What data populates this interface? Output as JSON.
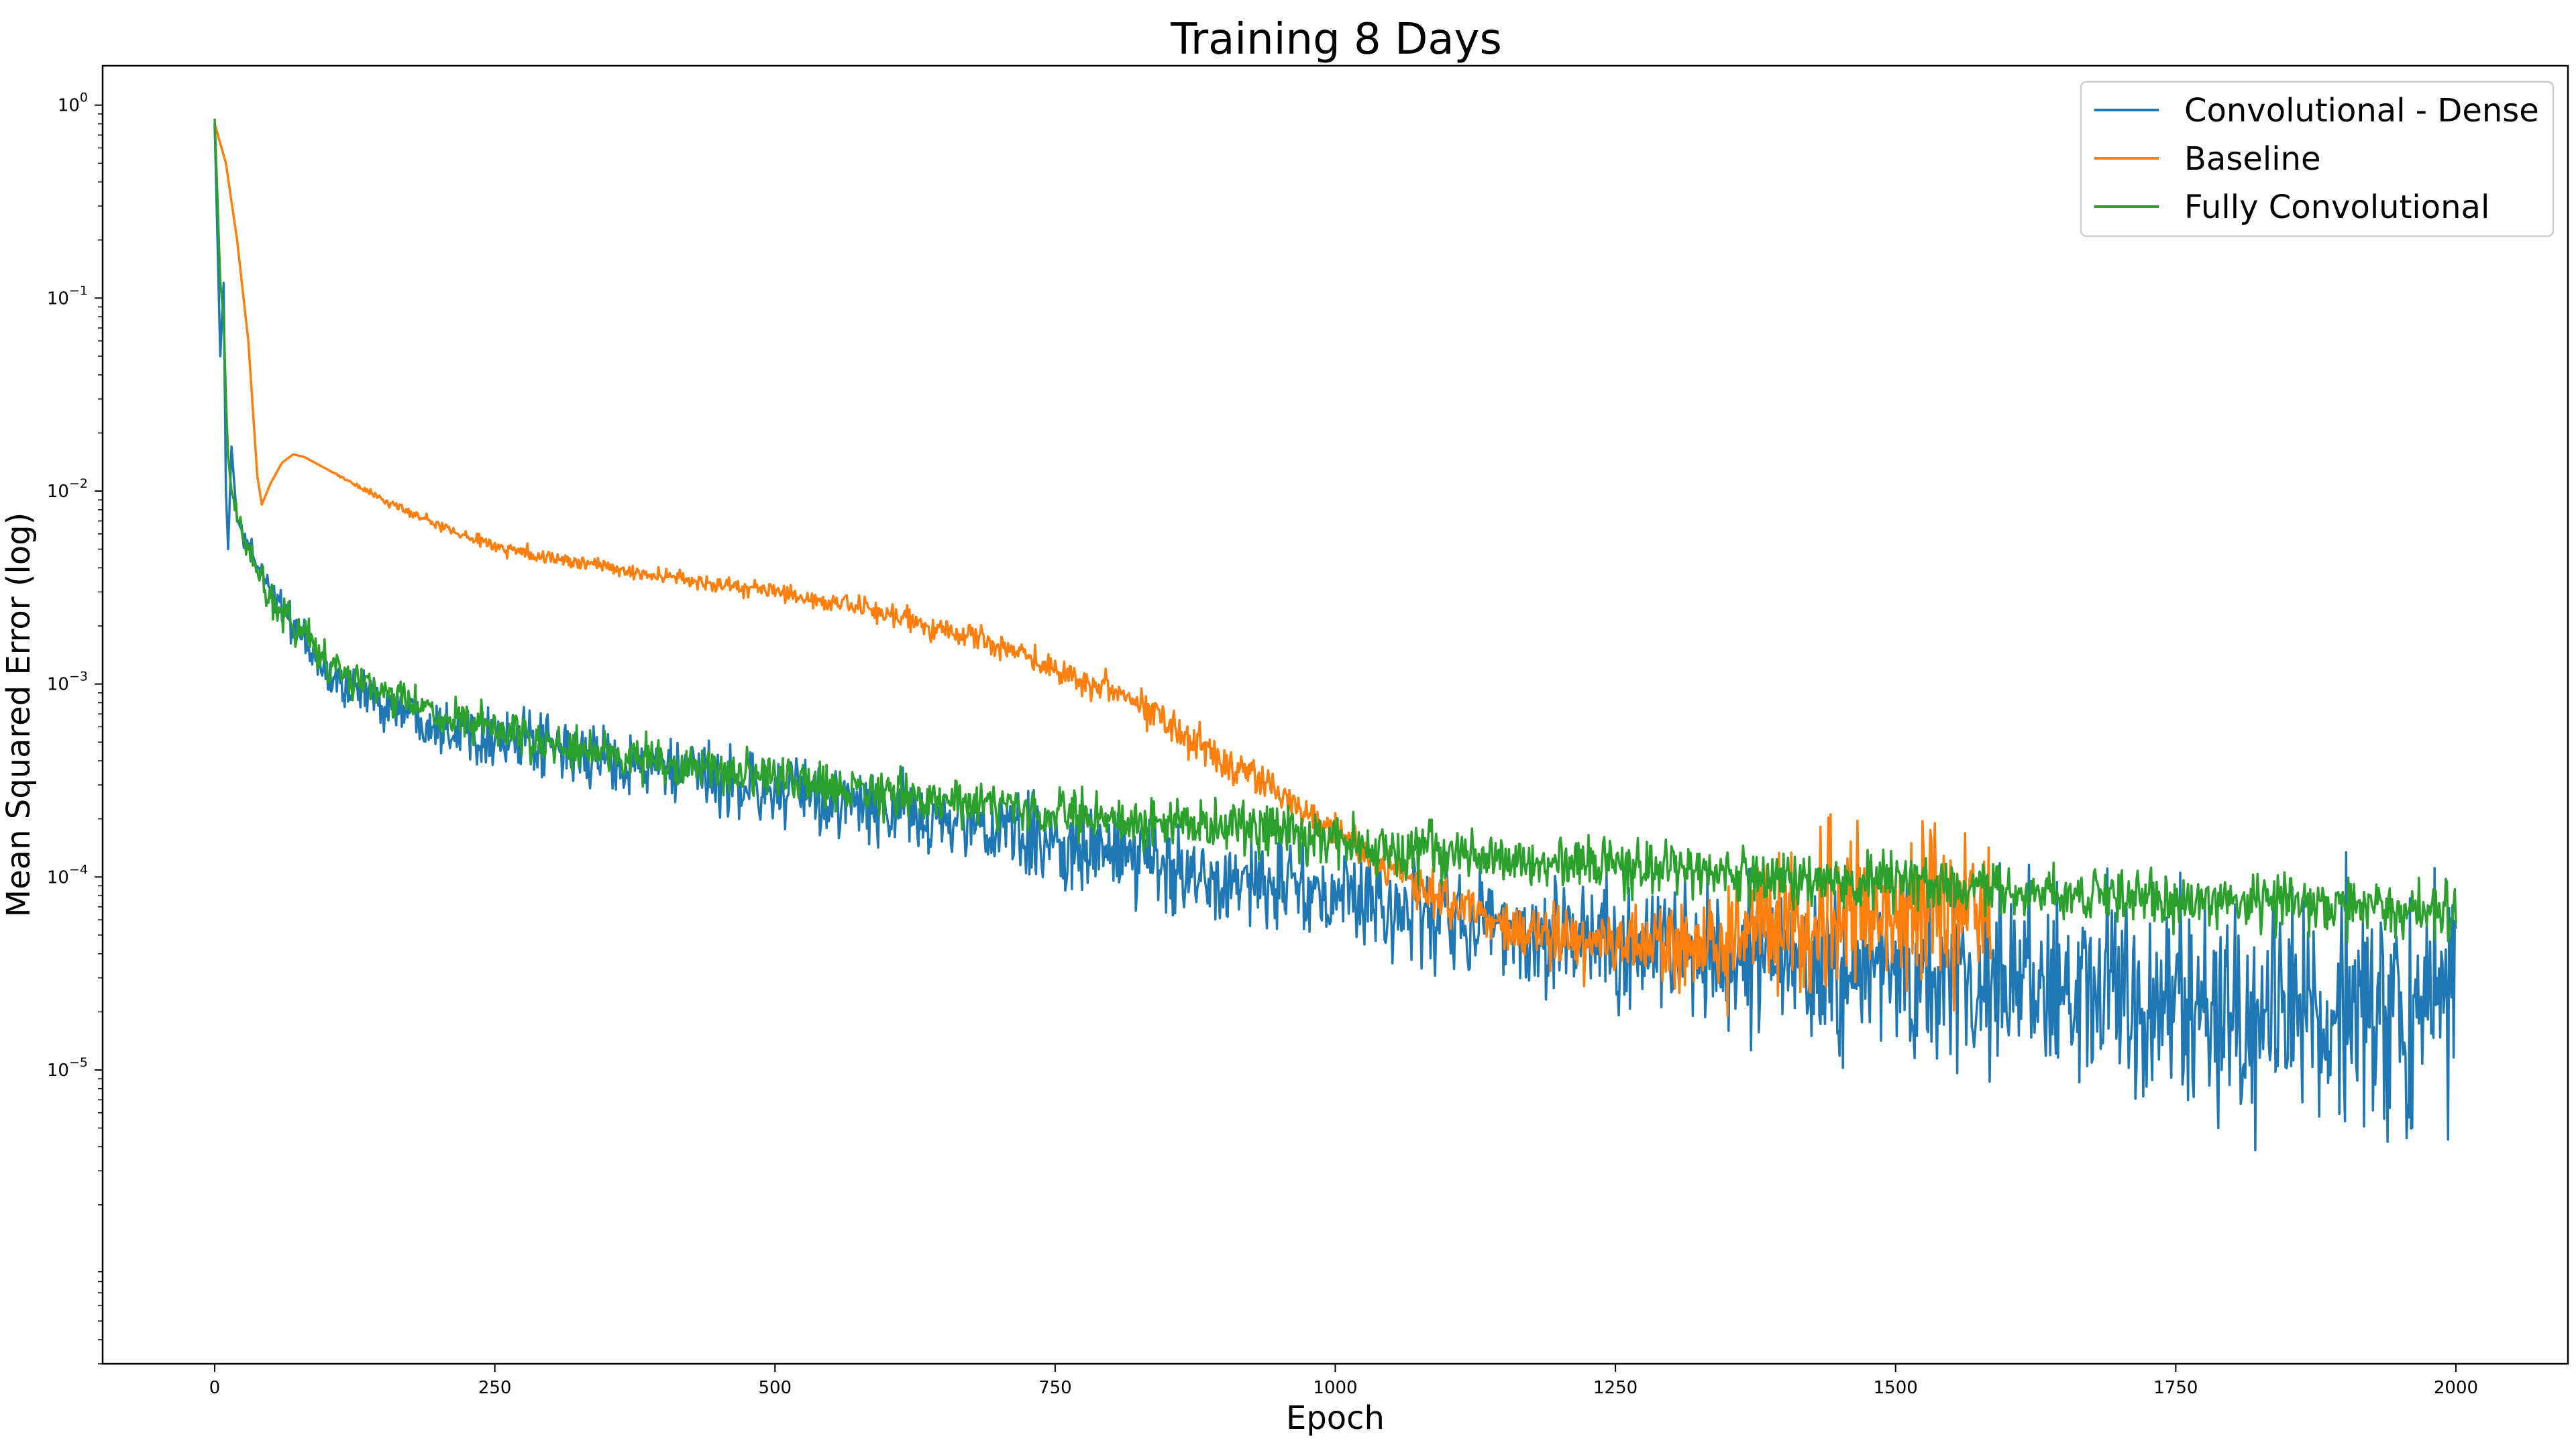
{
  "chart_data": {
    "type": "line",
    "title": "Training 8 Days",
    "xlabel": "Epoch",
    "ylabel": "Mean Squared Error (log)",
    "yscale": "log",
    "xlim": [
      -100,
      2100
    ],
    "ylim": [
      3e-07,
      1.6
    ],
    "xticks": [
      0,
      250,
      500,
      750,
      1000,
      1250,
      1500,
      1750,
      2000
    ],
    "xtick_labels": [
      "0",
      "250",
      "500",
      "750",
      "1000",
      "1250",
      "1500",
      "1750",
      "2000"
    ],
    "yticks": [
      1,
      0.1,
      0.01,
      0.001,
      0.0001,
      1e-05
    ],
    "ytick_labels": [
      {
        "base": "10",
        "exp": "0"
      },
      {
        "base": "10",
        "exp": "−1"
      },
      {
        "base": "10",
        "exp": "−2"
      },
      {
        "base": "10",
        "exp": "−3"
      },
      {
        "base": "10",
        "exp": "−4"
      },
      {
        "base": "10",
        "exp": "−5"
      }
    ],
    "grid": false,
    "legend_position": "top-right",
    "series": [
      {
        "name": "Convolutional - Dense",
        "color": "#1f77b4",
        "x": [
          0,
          5,
          8,
          10,
          12,
          15,
          20,
          30,
          40,
          60,
          80,
          100,
          150,
          200,
          300,
          400,
          500,
          600,
          700,
          800,
          900,
          1000,
          1100,
          1200,
          1300,
          1400,
          1500,
          1600,
          1700,
          1800,
          1900,
          2000
        ],
        "y": [
          0.8,
          0.05,
          0.12,
          0.01,
          0.005,
          0.017,
          0.007,
          0.005,
          0.004,
          0.0025,
          0.0016,
          0.0011,
          0.0008,
          0.00063,
          0.00046,
          0.00036,
          0.00028,
          0.00022,
          0.00017,
          0.00013,
          0.0001,
          7.8e-05,
          6.2e-05,
          5e-05,
          4.2e-05,
          3.6e-05,
          3.1e-05,
          2.7e-05,
          2.4e-05,
          2.1e-05,
          1.9e-05,
          1.7e-05
        ],
        "noise_amplitude": [
          0,
          0,
          0,
          0,
          0,
          0,
          0,
          0.05,
          0.05,
          0.05,
          0.05,
          0.06,
          0.06,
          0.07,
          0.08,
          0.08,
          0.09,
          0.1,
          0.1,
          0.11,
          0.12,
          0.12,
          0.14,
          0.15,
          0.17,
          0.19,
          0.22,
          0.25,
          0.28,
          0.3,
          0.32,
          0.32
        ]
      },
      {
        "name": "Baseline",
        "color": "#ff7f0e",
        "x": [
          0,
          10,
          20,
          30,
          38,
          42,
          50,
          60,
          70,
          80,
          100,
          150,
          200,
          250,
          300,
          400,
          500,
          600,
          700,
          750,
          800,
          850,
          900,
          950,
          1000,
          1050,
          1100,
          1150,
          1200,
          1250,
          1300,
          1350,
          1400,
          1450,
          1500,
          1550,
          1585
        ],
        "y": [
          0.8,
          0.5,
          0.2,
          0.06,
          0.012,
          0.0085,
          0.011,
          0.014,
          0.0155,
          0.015,
          0.013,
          0.009,
          0.0066,
          0.0052,
          0.0045,
          0.0036,
          0.003,
          0.0023,
          0.0016,
          0.0012,
          0.00095,
          0.00065,
          0.0004,
          0.00028,
          0.00017,
          0.00011,
          7.5e-05,
          5.8e-05,
          4.9e-05,
          4.4e-05,
          4.2e-05,
          4.5e-05,
          6e-05,
          6.5e-05,
          6.8e-05,
          7e-05,
          6.2e-05
        ],
        "noise_amplitude": [
          0,
          0,
          0,
          0,
          0,
          0,
          0,
          0,
          0,
          0,
          0,
          0.01,
          0.015,
          0.02,
          0.02,
          0.02,
          0.025,
          0.03,
          0.035,
          0.04,
          0.04,
          0.05,
          0.05,
          0.05,
          0.05,
          0.05,
          0.06,
          0.06,
          0.08,
          0.1,
          0.12,
          0.14,
          0.2,
          0.2,
          0.2,
          0.2,
          0.2
        ]
      },
      {
        "name": "Fully Convolutional",
        "color": "#2ca02c",
        "x": [
          0,
          5,
          8,
          10,
          12,
          15,
          20,
          30,
          50,
          80,
          100,
          150,
          200,
          300,
          400,
          500,
          600,
          700,
          800,
          900,
          1000,
          1100,
          1200,
          1300,
          1400,
          1500,
          1600,
          1700,
          1800,
          1900,
          2000
        ],
        "y": [
          0.85,
          0.12,
          0.08,
          0.03,
          0.015,
          0.01,
          0.0075,
          0.005,
          0.0028,
          0.0018,
          0.0013,
          0.0009,
          0.00068,
          0.00048,
          0.00039,
          0.00032,
          0.00027,
          0.00023,
          0.0002,
          0.00018,
          0.000155,
          0.000135,
          0.00012,
          0.00011,
          0.0001,
          9.2e-05,
          8.5e-05,
          7.9e-05,
          7.4e-05,
          7e-05,
          6.5e-05
        ],
        "noise_amplitude": [
          0,
          0,
          0,
          0,
          0,
          0,
          0.03,
          0.04,
          0.05,
          0.05,
          0.05,
          0.05,
          0.05,
          0.05,
          0.06,
          0.06,
          0.06,
          0.06,
          0.06,
          0.07,
          0.07,
          0.08,
          0.07,
          0.07,
          0.07,
          0.07,
          0.07,
          0.07,
          0.07,
          0.07,
          0.07
        ]
      }
    ]
  }
}
